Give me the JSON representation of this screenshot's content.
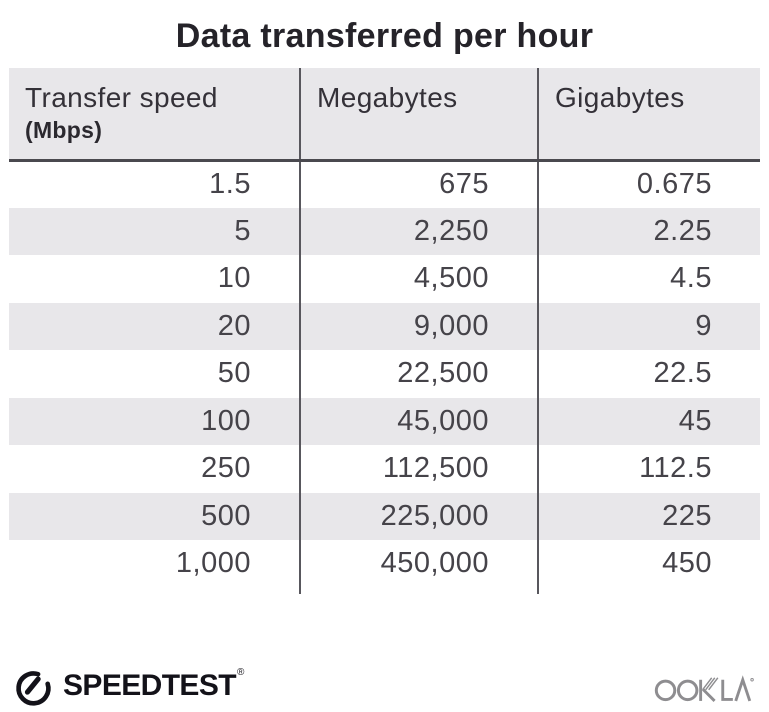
{
  "title": "Data transferred per hour",
  "table": {
    "header": {
      "col1_label": "Transfer speed",
      "col1_sublabel": "(Mbps)",
      "col2_label": "Megabytes",
      "col3_label": "Gigabytes"
    },
    "rows": [
      [
        "1.5",
        "675",
        "0.675"
      ],
      [
        "5",
        "2,250",
        "2.25"
      ],
      [
        "10",
        "4,500",
        "4.5"
      ],
      [
        "20",
        "9,000",
        "9"
      ],
      [
        "50",
        "22,500",
        "22.5"
      ],
      [
        "100",
        "45,000",
        "45"
      ],
      [
        "250",
        "112,500",
        "112.5"
      ],
      [
        "500",
        "225,000",
        "225"
      ],
      [
        "1,000",
        "450,000",
        "450"
      ]
    ]
  },
  "footer": {
    "speedtest": "SPEEDTEST",
    "speedtest_mark": "®",
    "ookla": "OOKLA"
  },
  "colors": {
    "stripe_bg": "#e8e7ea",
    "header_bg": "#e8e7ea",
    "divider": "#58575d",
    "header_rule": "#4a494f",
    "title_text": "#252329",
    "data_text": "#454349",
    "speedtest_dark": "#131219",
    "ookla_gray": "#8e8d90"
  },
  "chart_data": {
    "type": "table",
    "title": "Data transferred per hour",
    "columns": [
      "Transfer speed (Mbps)",
      "Megabytes",
      "Gigabytes"
    ],
    "rows": [
      [
        1.5,
        675,
        0.675
      ],
      [
        5,
        2250,
        2.25
      ],
      [
        10,
        4500,
        4.5
      ],
      [
        20,
        9000,
        9
      ],
      [
        50,
        22500,
        22.5
      ],
      [
        100,
        45000,
        45
      ],
      [
        250,
        112500,
        112.5
      ],
      [
        500,
        225000,
        225
      ],
      [
        1000,
        450000,
        450
      ]
    ],
    "layout": {
      "zebra_striping": true,
      "column_dividers": true,
      "source_brand": "Speedtest by Ookla"
    }
  }
}
